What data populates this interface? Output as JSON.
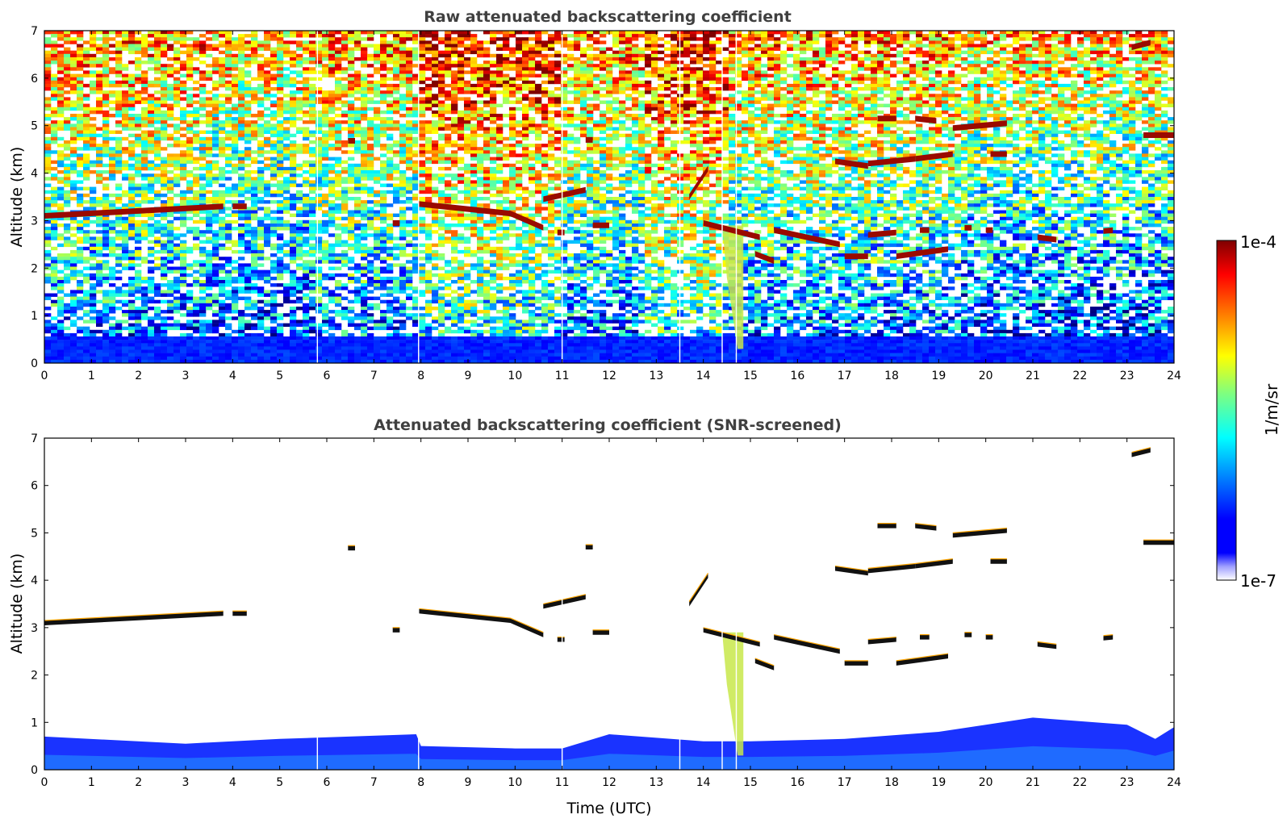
{
  "figure": {
    "colormap": [
      "#00007f",
      "#0000ff",
      "#007fff",
      "#00ffff",
      "#7fff7f",
      "#ffff00",
      "#ff7f00",
      "#ff0000",
      "#7f0000"
    ],
    "colorbar": {
      "max_label": "1e-4",
      "min_label": "1e-7",
      "unit_label": "1/m/sr",
      "scale": "log"
    }
  },
  "chart_data": [
    {
      "type": "heatmap",
      "panel": "top",
      "title": "Raw attenuated backscattering coefficient",
      "xlabel": "",
      "ylabel": "Altitude (km)",
      "xlim": [
        0,
        24
      ],
      "ylim": [
        0,
        7
      ],
      "x_ticks": [
        "0",
        "1",
        "2",
        "3",
        "4",
        "5",
        "6",
        "7",
        "8",
        "9",
        "10",
        "11",
        "12",
        "13",
        "14",
        "15",
        "16",
        "17",
        "18",
        "19",
        "20",
        "21",
        "22",
        "23",
        "24"
      ],
      "y_ticks": [
        "0",
        "1",
        "2",
        "3",
        "4",
        "5",
        "6",
        "7"
      ],
      "noise": true,
      "data_gaps_hours": [
        5.8,
        7.95,
        11.0,
        13.5,
        14.4,
        14.7
      ],
      "cloud_layers": [
        {
          "t0": 0.0,
          "t1": 3.8,
          "h0": 3.1,
          "h1": 3.3
        },
        {
          "t0": 4.0,
          "t1": 4.3,
          "h0": 3.3,
          "h1": 3.3
        },
        {
          "t0": 6.45,
          "t1": 6.6,
          "h0": 4.68,
          "h1": 4.68
        },
        {
          "t0": 7.4,
          "t1": 7.55,
          "h0": 2.95,
          "h1": 2.95
        },
        {
          "t0": 7.95,
          "t1": 9.9,
          "h0": 3.35,
          "h1": 3.15
        },
        {
          "t0": 9.9,
          "t1": 10.6,
          "h0": 3.15,
          "h1": 2.85
        },
        {
          "t0": 10.6,
          "t1": 11.5,
          "h0": 3.45,
          "h1": 3.65
        },
        {
          "t0": 10.9,
          "t1": 11.05,
          "h0": 2.75,
          "h1": 2.75
        },
        {
          "t0": 11.5,
          "t1": 11.65,
          "h0": 4.7,
          "h1": 4.7
        },
        {
          "t0": 11.65,
          "t1": 12.0,
          "h0": 2.9,
          "h1": 2.9
        },
        {
          "t0": 13.7,
          "t1": 14.1,
          "h0": 3.5,
          "h1": 4.1
        },
        {
          "t0": 14.0,
          "t1": 15.2,
          "h0": 2.95,
          "h1": 2.65
        },
        {
          "t0": 15.1,
          "t1": 15.5,
          "h0": 2.3,
          "h1": 2.15
        },
        {
          "t0": 15.5,
          "t1": 16.9,
          "h0": 2.8,
          "h1": 2.5
        },
        {
          "t0": 17.0,
          "t1": 17.5,
          "h0": 2.25,
          "h1": 2.25
        },
        {
          "t0": 16.8,
          "t1": 17.5,
          "h0": 4.25,
          "h1": 4.15
        },
        {
          "t0": 17.5,
          "t1": 18.1,
          "h0": 2.7,
          "h1": 2.75
        },
        {
          "t0": 17.5,
          "t1": 18.5,
          "h0": 4.2,
          "h1": 4.3
        },
        {
          "t0": 18.5,
          "t1": 19.3,
          "h0": 4.3,
          "h1": 4.4
        },
        {
          "t0": 18.1,
          "t1": 19.2,
          "h0": 2.25,
          "h1": 2.4
        },
        {
          "t0": 18.6,
          "t1": 18.8,
          "h0": 2.8,
          "h1": 2.8
        },
        {
          "t0": 17.7,
          "t1": 18.1,
          "h0": 5.15,
          "h1": 5.15
        },
        {
          "t0": 18.5,
          "t1": 18.95,
          "h0": 5.15,
          "h1": 5.1
        },
        {
          "t0": 19.3,
          "t1": 20.45,
          "h0": 4.95,
          "h1": 5.05
        },
        {
          "t0": 19.55,
          "t1": 19.7,
          "h0": 2.85,
          "h1": 2.85
        },
        {
          "t0": 20.0,
          "t1": 20.15,
          "h0": 2.8,
          "h1": 2.8
        },
        {
          "t0": 20.1,
          "t1": 20.45,
          "h0": 4.4,
          "h1": 4.4
        },
        {
          "t0": 21.1,
          "t1": 21.5,
          "h0": 2.65,
          "h1": 2.6
        },
        {
          "t0": 22.5,
          "t1": 22.7,
          "h0": 2.78,
          "h1": 2.8
        },
        {
          "t0": 23.1,
          "t1": 23.5,
          "h0": 6.65,
          "h1": 6.75
        },
        {
          "t0": 23.35,
          "t1": 24.0,
          "h0": 4.8,
          "h1": 4.8
        }
      ],
      "fall_streak": {
        "t_start": 14.4,
        "t_end": 14.85,
        "h_top": 2.9,
        "h_bottom": 0.3
      }
    },
    {
      "type": "heatmap",
      "panel": "bottom",
      "title": "Attenuated backscattering coefficient (SNR-screened)",
      "xlabel": "Time (UTC)",
      "ylabel": "Altitude (km)",
      "xlim": [
        0,
        24
      ],
      "ylim": [
        0,
        7
      ],
      "x_ticks": [
        "0",
        "1",
        "2",
        "3",
        "4",
        "5",
        "6",
        "7",
        "8",
        "9",
        "10",
        "11",
        "12",
        "13",
        "14",
        "15",
        "16",
        "17",
        "18",
        "19",
        "20",
        "21",
        "22",
        "23",
        "24"
      ],
      "y_ticks": [
        "0",
        "1",
        "2",
        "3",
        "4",
        "5",
        "6",
        "7"
      ],
      "noise": false,
      "data_gaps_hours": [
        5.8,
        7.95,
        11.0,
        13.5,
        14.4,
        14.7
      ],
      "cloud_layers": [
        {
          "t0": 0.0,
          "t1": 3.8,
          "h0": 3.1,
          "h1": 3.3
        },
        {
          "t0": 4.0,
          "t1": 4.3,
          "h0": 3.3,
          "h1": 3.3
        },
        {
          "t0": 6.45,
          "t1": 6.6,
          "h0": 4.68,
          "h1": 4.68
        },
        {
          "t0": 7.4,
          "t1": 7.55,
          "h0": 2.95,
          "h1": 2.95
        },
        {
          "t0": 7.95,
          "t1": 9.9,
          "h0": 3.35,
          "h1": 3.15
        },
        {
          "t0": 9.9,
          "t1": 10.6,
          "h0": 3.15,
          "h1": 2.85
        },
        {
          "t0": 10.6,
          "t1": 11.5,
          "h0": 3.45,
          "h1": 3.65
        },
        {
          "t0": 10.9,
          "t1": 11.05,
          "h0": 2.75,
          "h1": 2.75
        },
        {
          "t0": 11.5,
          "t1": 11.65,
          "h0": 4.7,
          "h1": 4.7
        },
        {
          "t0": 11.65,
          "t1": 12.0,
          "h0": 2.9,
          "h1": 2.9
        },
        {
          "t0": 13.7,
          "t1": 14.1,
          "h0": 3.5,
          "h1": 4.1
        },
        {
          "t0": 14.0,
          "t1": 15.2,
          "h0": 2.95,
          "h1": 2.65
        },
        {
          "t0": 15.1,
          "t1": 15.5,
          "h0": 2.3,
          "h1": 2.15
        },
        {
          "t0": 15.5,
          "t1": 16.9,
          "h0": 2.8,
          "h1": 2.5
        },
        {
          "t0": 17.0,
          "t1": 17.5,
          "h0": 2.25,
          "h1": 2.25
        },
        {
          "t0": 16.8,
          "t1": 17.5,
          "h0": 4.25,
          "h1": 4.15
        },
        {
          "t0": 17.5,
          "t1": 18.1,
          "h0": 2.7,
          "h1": 2.75
        },
        {
          "t0": 17.5,
          "t1": 18.5,
          "h0": 4.2,
          "h1": 4.3
        },
        {
          "t0": 18.5,
          "t1": 19.3,
          "h0": 4.3,
          "h1": 4.4
        },
        {
          "t0": 18.1,
          "t1": 19.2,
          "h0": 2.25,
          "h1": 2.4
        },
        {
          "t0": 18.6,
          "t1": 18.8,
          "h0": 2.8,
          "h1": 2.8
        },
        {
          "t0": 17.7,
          "t1": 18.1,
          "h0": 5.15,
          "h1": 5.15
        },
        {
          "t0": 18.5,
          "t1": 18.95,
          "h0": 5.15,
          "h1": 5.1
        },
        {
          "t0": 19.3,
          "t1": 20.45,
          "h0": 4.95,
          "h1": 5.05
        },
        {
          "t0": 19.55,
          "t1": 19.7,
          "h0": 2.85,
          "h1": 2.85
        },
        {
          "t0": 20.0,
          "t1": 20.15,
          "h0": 2.8,
          "h1": 2.8
        },
        {
          "t0": 20.1,
          "t1": 20.45,
          "h0": 4.4,
          "h1": 4.4
        },
        {
          "t0": 21.1,
          "t1": 21.5,
          "h0": 2.65,
          "h1": 2.6
        },
        {
          "t0": 22.5,
          "t1": 22.7,
          "h0": 2.78,
          "h1": 2.8
        },
        {
          "t0": 23.1,
          "t1": 23.5,
          "h0": 6.65,
          "h1": 6.75
        },
        {
          "t0": 23.35,
          "t1": 24.0,
          "h0": 4.8,
          "h1": 4.8
        }
      ],
      "fall_streak": {
        "t_start": 14.4,
        "t_end": 14.85,
        "h_top": 2.9,
        "h_bottom": 0.3
      },
      "boundary_layer_top_km": [
        {
          "t": 0,
          "h": 0.7
        },
        {
          "t": 3,
          "h": 0.55
        },
        {
          "t": 5,
          "h": 0.65
        },
        {
          "t": 7.9,
          "h": 0.75
        },
        {
          "t": 8,
          "h": 0.5
        },
        {
          "t": 10,
          "h": 0.45
        },
        {
          "t": 11,
          "h": 0.45
        },
        {
          "t": 12,
          "h": 0.75
        },
        {
          "t": 14,
          "h": 0.6
        },
        {
          "t": 15,
          "h": 0.6
        },
        {
          "t": 17,
          "h": 0.65
        },
        {
          "t": 19,
          "h": 0.8
        },
        {
          "t": 20,
          "h": 0.95
        },
        {
          "t": 21,
          "h": 1.1
        },
        {
          "t": 23,
          "h": 0.95
        },
        {
          "t": 23.6,
          "h": 0.65
        },
        {
          "t": 24,
          "h": 0.9
        }
      ]
    }
  ]
}
